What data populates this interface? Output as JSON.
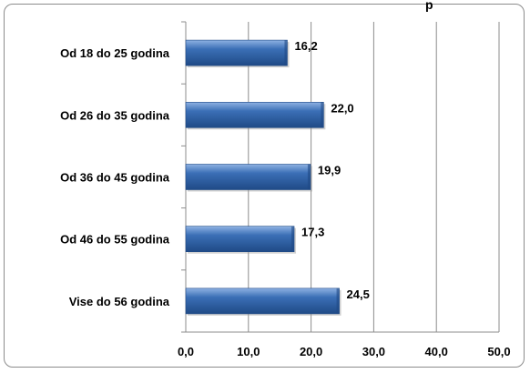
{
  "chart_data": {
    "type": "bar",
    "orientation": "horizontal",
    "title_visible_fragment": "p",
    "categories": [
      "Od 18 do 25 godina",
      "Od 26 do 35 godina",
      "Od 36 do 45 godina",
      "Od 46 do 55 godina",
      "Vise do 56 godina"
    ],
    "values": [
      16.2,
      22.0,
      19.9,
      17.3,
      24.5
    ],
    "value_labels": [
      "16,2",
      "22,0",
      "19,9",
      "17,3",
      "24,5"
    ],
    "xlim": [
      0,
      50
    ],
    "x_ticks": [
      "0,0",
      "10,0",
      "20,0",
      "30,0",
      "40,0",
      "50,0"
    ],
    "grid": "vertical",
    "bar_color": "#3b6fb6",
    "bar_color_light": "#8fb2e3",
    "bar_color_dark": "#1f4a86"
  }
}
